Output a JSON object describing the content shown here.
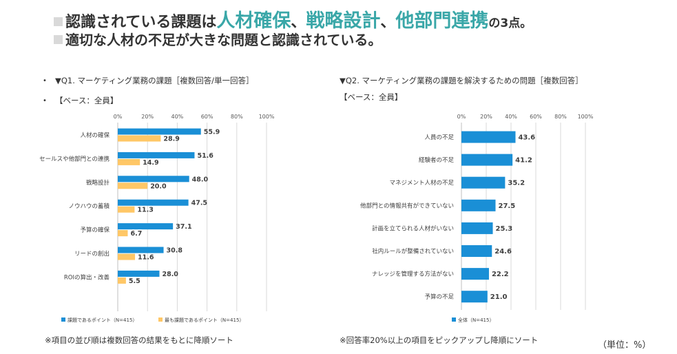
{
  "headline": {
    "line1_prefix": "認識されている課題は",
    "highlight1": "人材確保",
    "sep1": "、",
    "highlight2": "戦略設計",
    "sep2": "、",
    "highlight3": "他部門連携",
    "line1_suffix": "の3点。",
    "line2": "適切な人材の不足が大きな問題と認識されている。"
  },
  "left_panel": {
    "bullet": "•",
    "title": "▼Q1. マーケティング業務の課題［複数回答/単一回答］",
    "base": "【ベース：全員】",
    "note": "※項目の並び順は複数回答の結果をもとに降順ソート"
  },
  "right_panel": {
    "title": "▼Q2. マーケティング業務の課題を解決するための問題［複数回答］",
    "base": "【ベース：全員】",
    "note": "※回答率20%以上の項目をピックアップし降順にソート",
    "unit": "（単位：%）"
  },
  "colors": {
    "blue": "#1a8fd6",
    "yellow": "#ffc766",
    "grid": "#d9d9d9",
    "accent": "#3aa7a8"
  },
  "chart_data": [
    {
      "type": "bar",
      "orientation": "horizontal",
      "xlim": [
        0,
        100
      ],
      "xticks": [
        "0%",
        "20%",
        "40%",
        "60%",
        "80%",
        "100%"
      ],
      "categories": [
        "人材の確保",
        "セールスや他部門との連携",
        "戦略設計",
        "ノウハウの蓄積",
        "予算の確保",
        "リードの創出",
        "ROIの算出・改善"
      ],
      "series": [
        {
          "name": "課題であるポイント（N=415）",
          "color": "#1a8fd6",
          "values": [
            55.9,
            51.6,
            48.0,
            47.5,
            37.1,
            30.8,
            28.0
          ],
          "labels": [
            "55.9",
            "51.6",
            "48.0",
            "47.5",
            "37.1",
            "30.8",
            "28.0"
          ]
        },
        {
          "name": "最も課題であるポイント（N=415）",
          "color": "#ffc766",
          "values": [
            28.9,
            14.9,
            20.0,
            11.3,
            6.7,
            11.6,
            5.5
          ],
          "labels": [
            "28.9",
            "14.9",
            "20.0",
            "11.3",
            "6.7",
            "11.6",
            "5.5"
          ]
        }
      ]
    },
    {
      "type": "bar",
      "orientation": "horizontal",
      "xlim": [
        0,
        100
      ],
      "xticks": [
        "0%",
        "20%",
        "40%",
        "60%",
        "80%",
        "100%"
      ],
      "categories": [
        "人員の不足",
        "経験者の不足",
        "マネジメント人材の不足",
        "他部門との情報共有ができていない",
        "計画を立てられる人材がいない",
        "社内ルールが整備されていない",
        "ナレッジを管理する方法がない",
        "予算の不足"
      ],
      "series": [
        {
          "name": "全体（N=415）",
          "color": "#1a8fd6",
          "values": [
            43.6,
            41.2,
            35.2,
            27.5,
            25.3,
            24.6,
            22.2,
            21.0
          ],
          "labels": [
            "43.6",
            "41.2",
            "35.2",
            "27.5",
            "25.3",
            "24.6",
            "22.2",
            "21.0"
          ]
        }
      ]
    }
  ]
}
